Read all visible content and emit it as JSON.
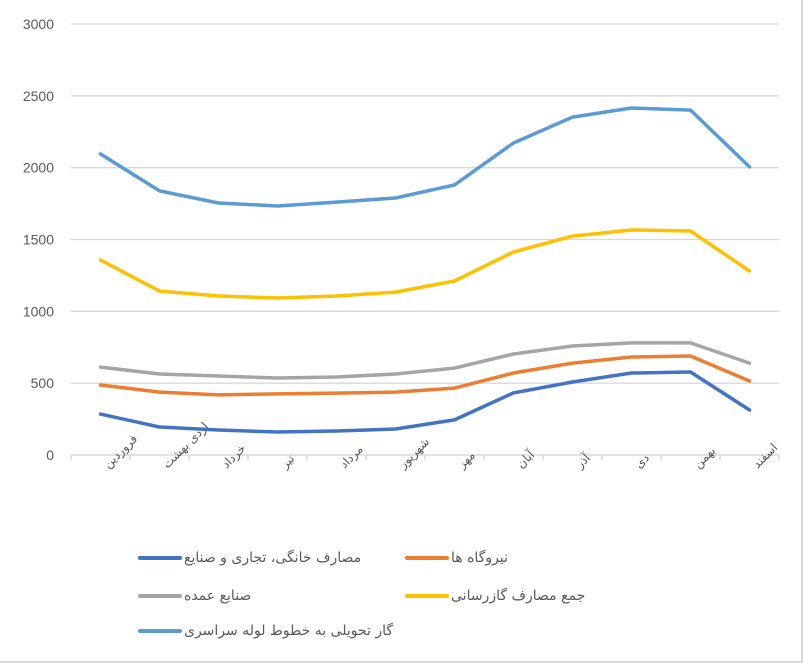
{
  "chart_data": {
    "type": "line",
    "title": "",
    "xlabel": "",
    "ylabel": "",
    "ylim": [
      0,
      3000
    ],
    "yticks": [
      0,
      500,
      1000,
      1500,
      2000,
      2500,
      3000
    ],
    "grid": true,
    "legend_position": "bottom",
    "categories": [
      "فروردین",
      "اردی بهشت",
      "خرداد",
      "تیر",
      "مرداد",
      "شهریور",
      "مهر",
      "آبان",
      "آذر",
      "دی",
      "بهمن",
      "اسفند"
    ],
    "series": [
      {
        "name": "مصارف خانگی، تجاری و صنایع",
        "color": "#4472c4",
        "values": [
          285,
          195,
          174,
          160,
          167,
          181,
          244,
          432,
          508,
          571,
          578,
          313
        ]
      },
      {
        "name": "نیروگاه ها",
        "color": "#ed7d31",
        "values": [
          487,
          438,
          418,
          425,
          431,
          438,
          466,
          571,
          640,
          682,
          689,
          515
        ]
      },
      {
        "name": "صنایع عمده",
        "color": "#a5a5a5",
        "values": [
          612,
          564,
          550,
          536,
          543,
          564,
          605,
          703,
          759,
          780,
          780,
          640
        ]
      },
      {
        "name": "جمع مصارف گازرسانی",
        "color": "#ffc000",
        "values": [
          1357,
          1141,
          1107,
          1093,
          1107,
          1134,
          1211,
          1413,
          1524,
          1566,
          1559,
          1281
        ]
      },
      {
        "name": "گار تحویلی به خطوط لوله سراسری",
        "color": "#5b9bd5",
        "values": [
          2095,
          1838,
          1754,
          1733,
          1760,
          1789,
          1880,
          2172,
          2352,
          2415,
          2401,
          2005
        ]
      }
    ]
  },
  "legend": {
    "items": [
      {
        "label": "مصارف خانگی، تجاری و صنایع",
        "color": "#4472c4"
      },
      {
        "label": "نیروگاه ها",
        "color": "#ed7d31"
      },
      {
        "label": "صنایع عمده",
        "color": "#a5a5a5"
      },
      {
        "label": "جمع مصارف گازرسانی",
        "color": "#ffc000"
      },
      {
        "label": "گار تحویلی به خطوط لوله سراسری",
        "color": "#5b9bd5"
      }
    ]
  }
}
